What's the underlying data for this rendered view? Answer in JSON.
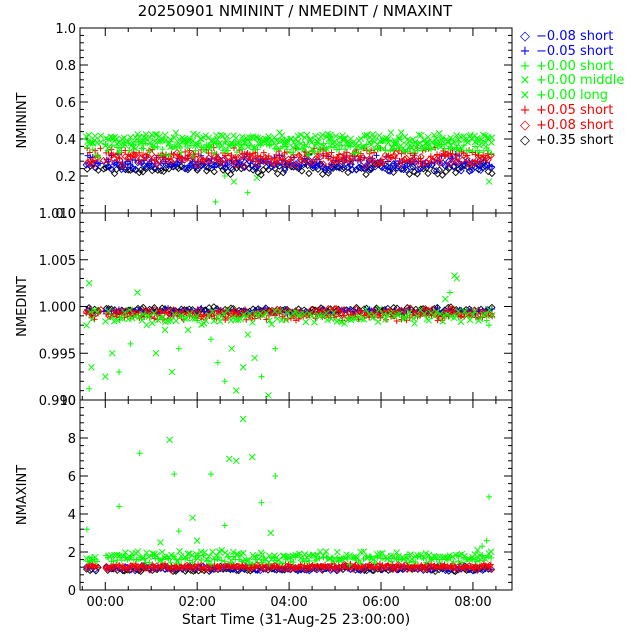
{
  "title": "20250901 NMININT / NMEDINT / NMAXINT",
  "xlabel": "Start Time (31-Aug-25 23:00:00)",
  "legend": [
    {
      "symbol": "diamond",
      "label": "−0.08 short",
      "color": "#0000ff"
    },
    {
      "symbol": "plus",
      "label": "−0.05 short",
      "color": "#0000ff"
    },
    {
      "symbol": "plus",
      "label": "+0.00 short",
      "color": "#00ff00"
    },
    {
      "symbol": "x",
      "label": "+0.00 middle",
      "color": "#00ff00"
    },
    {
      "symbol": "x",
      "label": "+0.00 long",
      "color": "#00ff00"
    },
    {
      "symbol": "plus",
      "label": "+0.05 short",
      "color": "#ff0000"
    },
    {
      "symbol": "diamond",
      "label": "+0.08 short",
      "color": "#ff0000"
    },
    {
      "symbol": "diamond",
      "label": "+0.35 short",
      "color": "#000000"
    }
  ],
  "chart_data": [
    {
      "type": "scatter",
      "ylabel": "NMININT",
      "xlim": [
        -0.55,
        8.85
      ],
      "ylim": [
        0.0,
        1.0
      ],
      "x_ticks": [
        "00:00",
        "02:00",
        "04:00",
        "06:00",
        "08:00"
      ],
      "y_ticks": [
        "0.0",
        "0.2",
        "0.4",
        "0.6",
        "0.8",
        "1.0"
      ],
      "x_range": [
        -0.4,
        8.4
      ],
      "series": [
        {
          "name": "+0.35 short",
          "marker": "diamond",
          "color": "#000000",
          "level": 0.24,
          "spread": 0.02
        },
        {
          "name": "−0.08 short",
          "marker": "diamond",
          "color": "#0000ff",
          "level": 0.26,
          "spread": 0.02
        },
        {
          "name": "−0.05 short",
          "marker": "plus",
          "color": "#0000ff",
          "level": 0.28,
          "spread": 0.02
        },
        {
          "name": "+0.08 short",
          "marker": "diamond",
          "color": "#ff0000",
          "level": 0.29,
          "spread": 0.02
        },
        {
          "name": "+0.05 short",
          "marker": "plus",
          "color": "#ff0000",
          "level": 0.32,
          "spread": 0.02
        },
        {
          "name": "+0.00 short",
          "marker": "plus",
          "color": "#00ff00",
          "level": 0.35,
          "spread": 0.025
        },
        {
          "name": "+0.00 middle",
          "marker": "x",
          "color": "#00ff00",
          "level": 0.38,
          "spread": 0.025
        },
        {
          "name": "+0.00 long",
          "marker": "x",
          "color": "#00ff00",
          "level": 0.4,
          "spread": 0.02
        }
      ],
      "outliers": [
        {
          "x": 2.8,
          "y": 0.17
        },
        {
          "x": 3.1,
          "y": 0.11
        },
        {
          "x": 2.4,
          "y": 0.06
        },
        {
          "x": 8.35,
          "y": 0.17
        },
        {
          "x": 2.6,
          "y": 0.2
        },
        {
          "x": 3.3,
          "y": 0.19
        }
      ]
    },
    {
      "type": "scatter",
      "ylabel": "NMEDINT",
      "xlim": [
        -0.55,
        8.85
      ],
      "ylim": [
        0.99,
        1.01
      ],
      "x_ticks": [
        "00:00",
        "02:00",
        "04:00",
        "06:00",
        "08:00"
      ],
      "y_ticks": [
        "0.990",
        "0.995",
        "1.000",
        "1.005",
        "1.010"
      ],
      "x_range": [
        -0.4,
        8.4
      ],
      "series": [
        {
          "name": "+0.35 short",
          "marker": "diamond",
          "color": "#000000",
          "level": 0.9996,
          "spread": 0.0002
        },
        {
          "name": "−0.05 short",
          "marker": "plus",
          "color": "#0000ff",
          "level": 0.9995,
          "spread": 0.0002
        },
        {
          "name": "+0.08 short",
          "marker": "diamond",
          "color": "#ff0000",
          "level": 0.9993,
          "spread": 0.0003
        },
        {
          "name": "+0.05 short",
          "marker": "plus",
          "color": "#ff0000",
          "level": 0.999,
          "spread": 0.0003
        },
        {
          "name": "+0.00 long",
          "marker": "x",
          "color": "#00ff00",
          "level": 0.9989,
          "spread": 0.0005
        }
      ],
      "outliers": [
        {
          "x": -0.35,
          "y": 1.0025
        },
        {
          "x": -0.35,
          "y": 0.9912
        },
        {
          "x": -0.3,
          "y": 0.9935
        },
        {
          "x": 0.0,
          "y": 0.9925
        },
        {
          "x": 0.15,
          "y": 0.995
        },
        {
          "x": 0.3,
          "y": 0.993
        },
        {
          "x": 0.55,
          "y": 0.996
        },
        {
          "x": 0.7,
          "y": 1.0015
        },
        {
          "x": 0.9,
          "y": 0.998
        },
        {
          "x": 1.1,
          "y": 0.995
        },
        {
          "x": 1.3,
          "y": 0.9975
        },
        {
          "x": 1.45,
          "y": 0.993
        },
        {
          "x": 1.6,
          "y": 0.9955
        },
        {
          "x": 1.8,
          "y": 0.9975
        },
        {
          "x": 2.0,
          "y": 0.9985
        },
        {
          "x": 2.3,
          "y": 0.9965
        },
        {
          "x": 2.45,
          "y": 0.994
        },
        {
          "x": 2.6,
          "y": 0.992
        },
        {
          "x": 2.75,
          "y": 0.9955
        },
        {
          "x": 2.85,
          "y": 0.991
        },
        {
          "x": 3.0,
          "y": 0.9935
        },
        {
          "x": 3.1,
          "y": 0.997
        },
        {
          "x": 3.25,
          "y": 0.9945
        },
        {
          "x": 3.4,
          "y": 0.9925
        },
        {
          "x": 3.55,
          "y": 0.9905
        },
        {
          "x": 3.7,
          "y": 0.9955
        },
        {
          "x": 7.6,
          "y": 1.0033
        },
        {
          "x": 7.65,
          "y": 1.003
        },
        {
          "x": 7.5,
          "y": 1.0015
        },
        {
          "x": 7.4,
          "y": 1.0008
        },
        {
          "x": 8.3,
          "y": 0.9985
        },
        {
          "x": 8.35,
          "y": 0.998
        }
      ]
    },
    {
      "type": "scatter",
      "ylabel": "NMAXINT",
      "xlim": [
        -0.55,
        8.85
      ],
      "ylim": [
        0,
        10
      ],
      "x_ticks": [
        "00:00",
        "02:00",
        "04:00",
        "06:00",
        "08:00"
      ],
      "y_ticks": [
        "0",
        "2",
        "4",
        "6",
        "8",
        "10"
      ],
      "x_range": [
        -0.4,
        8.4
      ],
      "series": [
        {
          "name": "+0.35 short",
          "marker": "diamond",
          "color": "#000000",
          "level": 1.1,
          "spread": 0.08
        },
        {
          "name": "−0.08 short",
          "marker": "diamond",
          "color": "#0000ff",
          "level": 1.15,
          "spread": 0.08
        },
        {
          "name": "+0.08 short",
          "marker": "diamond",
          "color": "#ff0000",
          "level": 1.2,
          "spread": 0.08
        },
        {
          "name": "+0.05 short",
          "marker": "plus",
          "color": "#ff0000",
          "level": 1.25,
          "spread": 0.08
        },
        {
          "name": "+0.00 short",
          "marker": "plus",
          "color": "#00ff00",
          "level": 1.6,
          "spread": 0.15
        },
        {
          "name": "+0.00 long",
          "marker": "x",
          "color": "#00ff00",
          "level": 1.8,
          "spread": 0.15
        }
      ],
      "outliers": [
        {
          "x": -0.4,
          "y": 3.2
        },
        {
          "x": 0.3,
          "y": 4.4
        },
        {
          "x": 0.75,
          "y": 7.2
        },
        {
          "x": 1.4,
          "y": 7.9
        },
        {
          "x": 1.5,
          "y": 6.1
        },
        {
          "x": 1.6,
          "y": 3.1
        },
        {
          "x": 1.9,
          "y": 3.8
        },
        {
          "x": 2.0,
          "y": 2.6
        },
        {
          "x": 2.3,
          "y": 6.1
        },
        {
          "x": 2.6,
          "y": 3.4
        },
        {
          "x": 2.7,
          "y": 6.9
        },
        {
          "x": 2.85,
          "y": 6.8
        },
        {
          "x": 3.0,
          "y": 9.0
        },
        {
          "x": 3.2,
          "y": 7.0
        },
        {
          "x": 3.4,
          "y": 4.6
        },
        {
          "x": 3.6,
          "y": 3.0
        },
        {
          "x": 3.7,
          "y": 6.0
        },
        {
          "x": 1.2,
          "y": 2.5
        },
        {
          "x": 8.35,
          "y": 4.9
        },
        {
          "x": 8.3,
          "y": 2.6
        },
        {
          "x": 8.2,
          "y": 2.3
        },
        {
          "x": 8.1,
          "y": 2.1
        }
      ]
    }
  ]
}
